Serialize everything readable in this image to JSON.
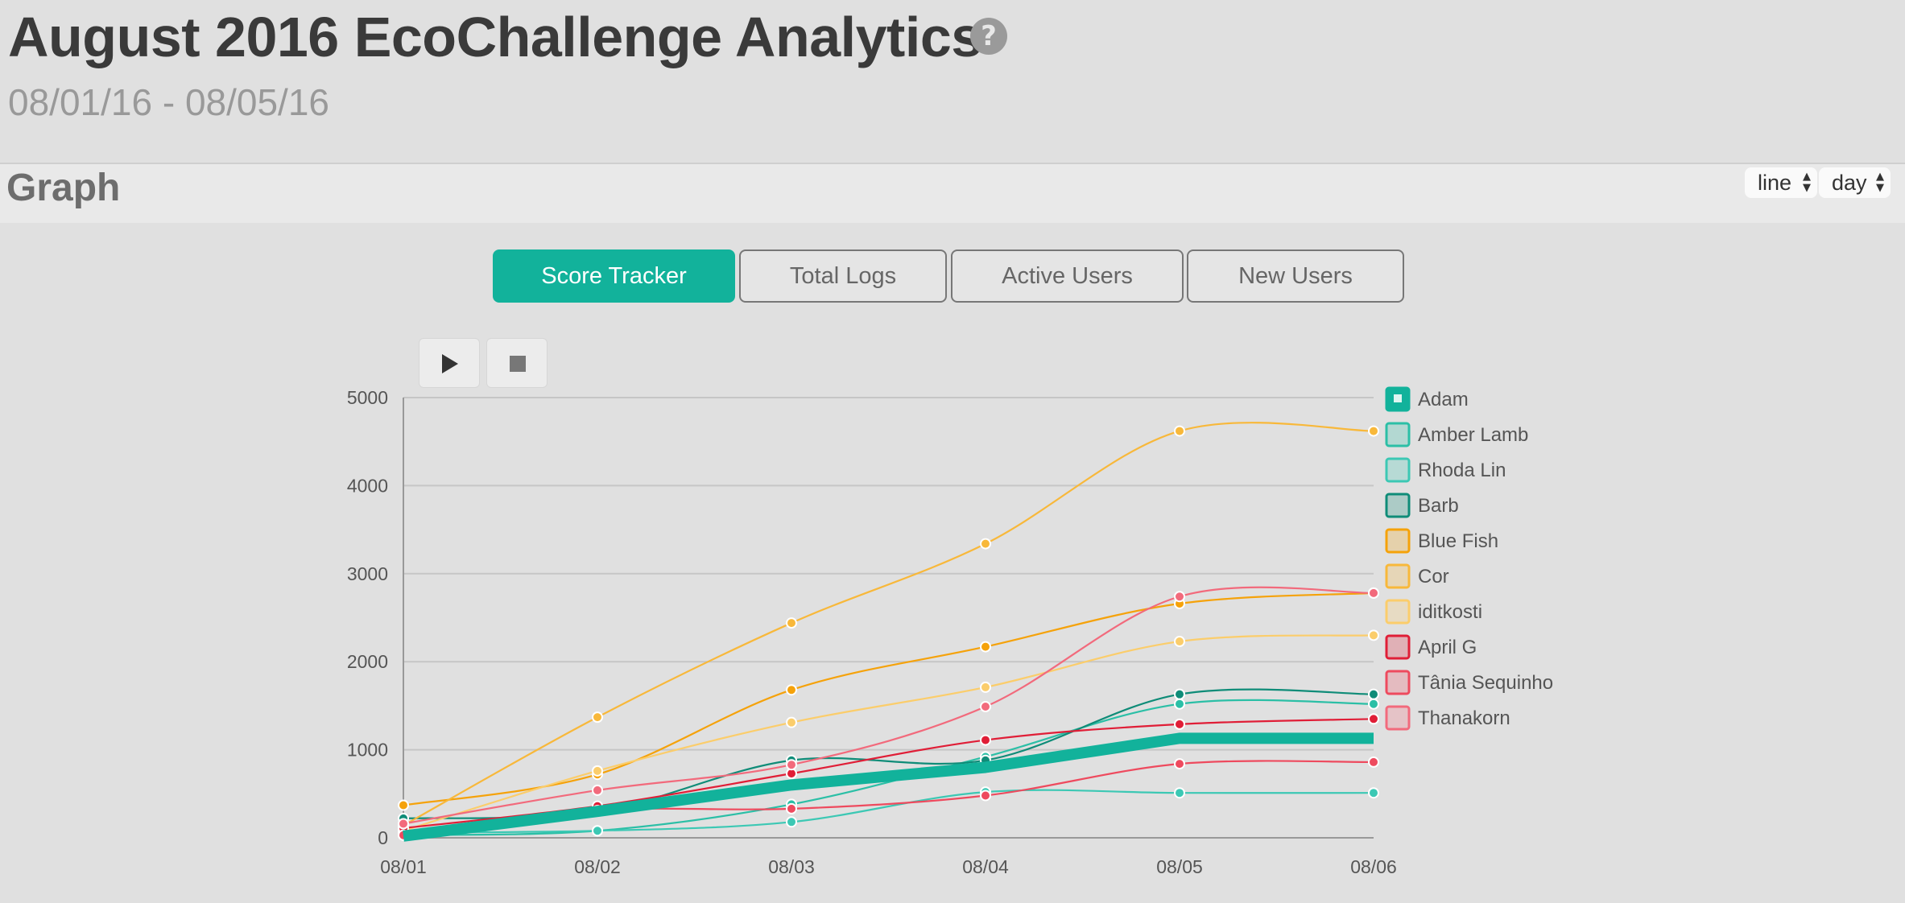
{
  "header": {
    "title": "August 2016 EcoChallenge Analytics",
    "help_icon": "?",
    "date_range": "08/01/16 - 08/05/16"
  },
  "graph_bar": {
    "heading": "Graph",
    "chart_type_select": "line",
    "interval_select": "day"
  },
  "tabs": [
    {
      "label": "Score Tracker",
      "active": true
    },
    {
      "label": "Total Logs",
      "active": false
    },
    {
      "label": "Active Users",
      "active": false
    },
    {
      "label": "New Users",
      "active": false
    }
  ],
  "controls": {
    "play": "play-icon",
    "stop": "stop-icon"
  },
  "chart_data": {
    "type": "line",
    "categories": [
      "08/01",
      "08/02",
      "08/03",
      "08/04",
      "08/05",
      "08/06"
    ],
    "ylim": [
      0,
      5000
    ],
    "yticks": [
      0,
      1000,
      2000,
      3000,
      4000,
      5000
    ],
    "grid": true,
    "legend_placement": "right",
    "highlighted_series": "Adam",
    "series": [
      {
        "name": "Adam",
        "color": "#12b29b",
        "values": [
          20,
          300,
          600,
          800,
          1130,
          1130
        ]
      },
      {
        "name": "Amber Lamb",
        "color": "#2bbfa6",
        "values": [
          30,
          80,
          380,
          920,
          1520,
          1520
        ]
      },
      {
        "name": "Rhoda Lin",
        "color": "#3cc8b4",
        "values": [
          60,
          80,
          180,
          520,
          510,
          510
        ]
      },
      {
        "name": "Barb",
        "color": "#0f8c78",
        "values": [
          220,
          300,
          880,
          880,
          1630,
          1630
        ]
      },
      {
        "name": "Blue Fish",
        "color": "#f5a20a",
        "values": [
          370,
          720,
          1680,
          2170,
          2660,
          2780
        ]
      },
      {
        "name": "Cor",
        "color": "#f8b83a",
        "values": [
          140,
          1370,
          2440,
          3340,
          4620,
          4620
        ]
      },
      {
        "name": "iditkosti",
        "color": "#fbcd6b",
        "values": [
          80,
          760,
          1310,
          1710,
          2230,
          2300
        ]
      },
      {
        "name": "April G",
        "color": "#e01e37",
        "values": [
          110,
          360,
          730,
          1110,
          1290,
          1350
        ]
      },
      {
        "name": "Tânia Sequinho",
        "color": "#ee4a5e",
        "values": [
          30,
          310,
          330,
          480,
          840,
          860
        ]
      },
      {
        "name": "Thanakorn",
        "color": "#f26a7c",
        "values": [
          160,
          540,
          830,
          1490,
          2740,
          2780
        ]
      }
    ]
  }
}
